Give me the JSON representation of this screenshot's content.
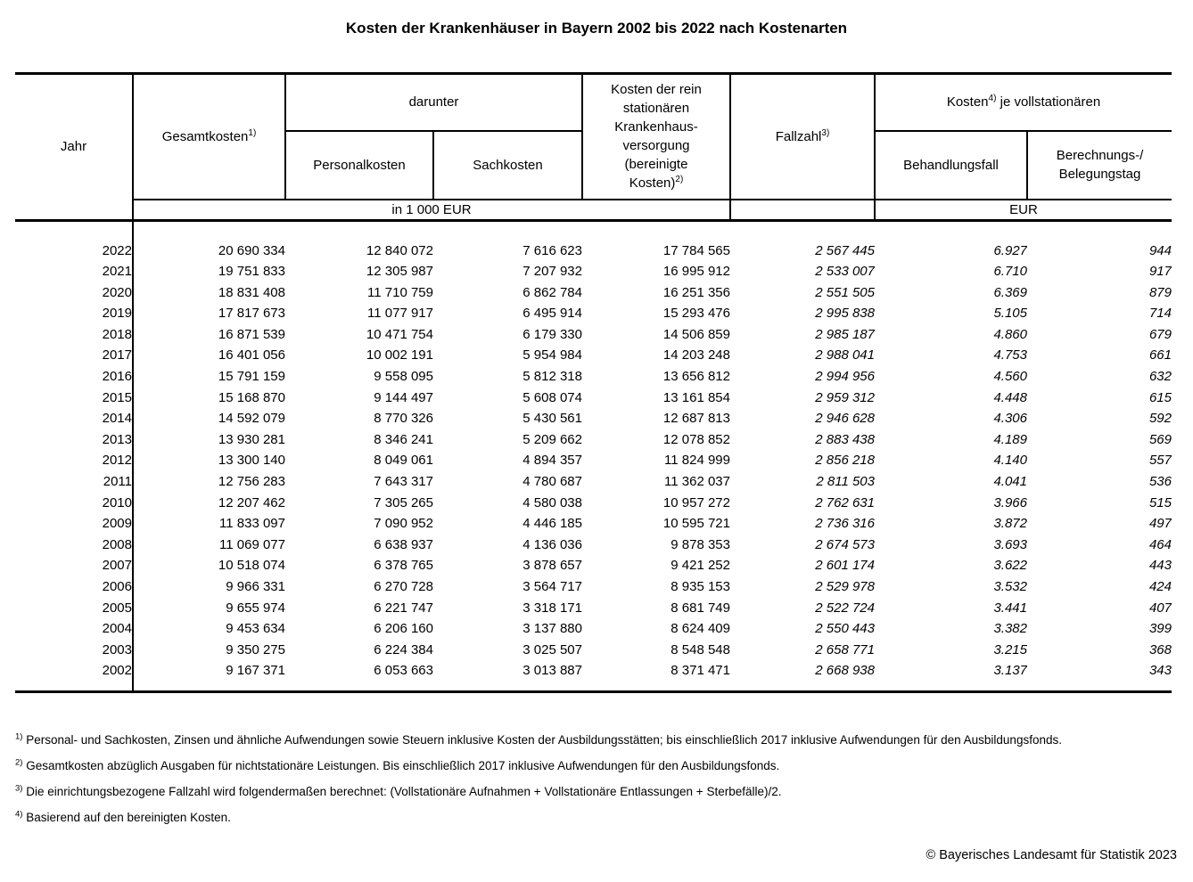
{
  "title": "Kosten der Krankenhäuser in Bayern 2002 bis 2022 nach Kostenarten",
  "table": {
    "header": {
      "jahr": "Jahr",
      "gesamtkosten": "Gesamtkosten",
      "gesamtkosten_sup": "1)",
      "darunter": "darunter",
      "personalkosten": "Personalkosten",
      "sachkosten": "Sachkosten",
      "bereinigte_kosten_lines": [
        "Kosten der rein",
        "stationären",
        "Krankenhaus-",
        "versorgung",
        "(bereinigte"
      ],
      "bereinigte_kosten_last": "Kosten)",
      "bereinigte_kosten_sup": "2)",
      "fallzahl": "Fallzahl",
      "fallzahl_sup": "3)",
      "kosten_je_pre": "Kosten",
      "kosten_je_sup": "4)",
      "kosten_je_post": " je vollstationären",
      "behandlungsfall": "Behandlungsfall",
      "berechnungstag_lines": [
        "Berechnungs-/",
        "Belegungstag"
      ],
      "unit_left": "in 1 000 EUR",
      "unit_right": "EUR"
    },
    "rows": [
      {
        "jahr": "2022",
        "gesamtkosten": "20 690 334",
        "personalkosten": "12 840 072",
        "sachkosten": "7 616 623",
        "bereinigte_kosten": "17 784 565",
        "fallzahl": "2 567 445",
        "behandlungsfall": "6.927",
        "berechnungstag": "944"
      },
      {
        "jahr": "2021",
        "gesamtkosten": "19 751 833",
        "personalkosten": "12 305 987",
        "sachkosten": "7 207 932",
        "bereinigte_kosten": "16 995 912",
        "fallzahl": "2 533 007",
        "behandlungsfall": "6.710",
        "berechnungstag": "917"
      },
      {
        "jahr": "2020",
        "gesamtkosten": "18 831 408",
        "personalkosten": "11 710 759",
        "sachkosten": "6 862 784",
        "bereinigte_kosten": "16 251 356",
        "fallzahl": "2 551 505",
        "behandlungsfall": "6.369",
        "berechnungstag": "879"
      },
      {
        "jahr": "2019",
        "gesamtkosten": "17 817 673",
        "personalkosten": "11 077 917",
        "sachkosten": "6 495 914",
        "bereinigte_kosten": "15 293 476",
        "fallzahl": "2 995 838",
        "behandlungsfall": "5.105",
        "berechnungstag": "714"
      },
      {
        "jahr": "2018",
        "gesamtkosten": "16 871 539",
        "personalkosten": "10 471 754",
        "sachkosten": "6 179 330",
        "bereinigte_kosten": "14 506 859",
        "fallzahl": "2 985 187",
        "behandlungsfall": "4.860",
        "berechnungstag": "679"
      },
      {
        "jahr": "2017",
        "gesamtkosten": "16 401 056",
        "personalkosten": "10 002 191",
        "sachkosten": "5 954 984",
        "bereinigte_kosten": "14 203 248",
        "fallzahl": "2 988 041",
        "behandlungsfall": "4.753",
        "berechnungstag": "661"
      },
      {
        "jahr": "2016",
        "gesamtkosten": "15 791 159",
        "personalkosten": "9 558 095",
        "sachkosten": "5 812 318",
        "bereinigte_kosten": "13 656 812",
        "fallzahl": "2 994 956",
        "behandlungsfall": "4.560",
        "berechnungstag": "632"
      },
      {
        "jahr": "2015",
        "gesamtkosten": "15 168 870",
        "personalkosten": "9 144 497",
        "sachkosten": "5 608 074",
        "bereinigte_kosten": "13 161 854",
        "fallzahl": "2 959 312",
        "behandlungsfall": "4.448",
        "berechnungstag": "615"
      },
      {
        "jahr": "2014",
        "gesamtkosten": "14 592 079",
        "personalkosten": "8 770 326",
        "sachkosten": "5 430 561",
        "bereinigte_kosten": "12 687 813",
        "fallzahl": "2 946 628",
        "behandlungsfall": "4.306",
        "berechnungstag": "592"
      },
      {
        "jahr": "2013",
        "gesamtkosten": "13 930 281",
        "personalkosten": "8 346 241",
        "sachkosten": "5 209 662",
        "bereinigte_kosten": "12 078 852",
        "fallzahl": "2 883 438",
        "behandlungsfall": "4.189",
        "berechnungstag": "569"
      },
      {
        "jahr": "2012",
        "gesamtkosten": "13 300 140",
        "personalkosten": "8 049 061",
        "sachkosten": "4 894 357",
        "bereinigte_kosten": "11 824 999",
        "fallzahl": "2 856 218",
        "behandlungsfall": "4.140",
        "berechnungstag": "557"
      },
      {
        "jahr": "2011",
        "gesamtkosten": "12 756 283",
        "personalkosten": "7 643 317",
        "sachkosten": "4 780 687",
        "bereinigte_kosten": "11 362 037",
        "fallzahl": "2 811 503",
        "behandlungsfall": "4.041",
        "berechnungstag": "536"
      },
      {
        "jahr": "2010",
        "gesamtkosten": "12 207 462",
        "personalkosten": "7 305 265",
        "sachkosten": "4 580 038",
        "bereinigte_kosten": "10 957 272",
        "fallzahl": "2 762 631",
        "behandlungsfall": "3.966",
        "berechnungstag": "515"
      },
      {
        "jahr": "2009",
        "gesamtkosten": "11 833 097",
        "personalkosten": "7 090 952",
        "sachkosten": "4 446 185",
        "bereinigte_kosten": "10 595 721",
        "fallzahl": "2 736 316",
        "behandlungsfall": "3.872",
        "berechnungstag": "497"
      },
      {
        "jahr": "2008",
        "gesamtkosten": "11 069 077",
        "personalkosten": "6 638 937",
        "sachkosten": "4 136 036",
        "bereinigte_kosten": "9 878 353",
        "fallzahl": "2 674 573",
        "behandlungsfall": "3.693",
        "berechnungstag": "464"
      },
      {
        "jahr": "2007",
        "gesamtkosten": "10 518 074",
        "personalkosten": "6 378 765",
        "sachkosten": "3 878 657",
        "bereinigte_kosten": "9 421 252",
        "fallzahl": "2 601 174",
        "behandlungsfall": "3.622",
        "berechnungstag": "443"
      },
      {
        "jahr": "2006",
        "gesamtkosten": "9 966 331",
        "personalkosten": "6 270 728",
        "sachkosten": "3 564 717",
        "bereinigte_kosten": "8 935 153",
        "fallzahl": "2 529 978",
        "behandlungsfall": "3.532",
        "berechnungstag": "424"
      },
      {
        "jahr": "2005",
        "gesamtkosten": "9 655 974",
        "personalkosten": "6 221 747",
        "sachkosten": "3 318 171",
        "bereinigte_kosten": "8 681 749",
        "fallzahl": "2 522 724",
        "behandlungsfall": "3.441",
        "berechnungstag": "407"
      },
      {
        "jahr": "2004",
        "gesamtkosten": "9 453 634",
        "personalkosten": "6 206 160",
        "sachkosten": "3 137 880",
        "bereinigte_kosten": "8 624 409",
        "fallzahl": "2 550 443",
        "behandlungsfall": "3.382",
        "berechnungstag": "399"
      },
      {
        "jahr": "2003",
        "gesamtkosten": "9 350 275",
        "personalkosten": "6 224 384",
        "sachkosten": "3 025 507",
        "bereinigte_kosten": "8 548 548",
        "fallzahl": "2 658 771",
        "behandlungsfall": "3.215",
        "berechnungstag": "368"
      },
      {
        "jahr": "2002",
        "gesamtkosten": "9 167 371",
        "personalkosten": "6 053 663",
        "sachkosten": "3 013 887",
        "bereinigte_kosten": "8 371 471",
        "fallzahl": "2 668 938",
        "behandlungsfall": "3.137",
        "berechnungstag": "343"
      }
    ]
  },
  "footnotes": [
    {
      "marker": "1)",
      "text": "Personal- und Sachkosten, Zinsen und ähnliche Aufwendungen sowie Steuern inklusive Kosten der Ausbildungsstätten; bis einschließlich 2017 inklusive Aufwendungen für den Ausbildungsfonds."
    },
    {
      "marker": "2)",
      "text": "Gesamtkosten abzüglich Ausgaben für nichtstationäre Leistungen. Bis einschließlich 2017 inklusive Aufwendungen für den Ausbildungsfonds."
    },
    {
      "marker": "3)",
      "text": "Die einrichtungsbezogene Fallzahl wird folgendermaßen berechnet: (Vollstationäre Aufnahmen + Vollstationäre Entlassungen + Sterbefälle)/2."
    },
    {
      "marker": "4)",
      "text": "Basierend auf den bereinigten Kosten."
    }
  ],
  "copyright": "© Bayerisches Landesamt für Statistik 2023"
}
